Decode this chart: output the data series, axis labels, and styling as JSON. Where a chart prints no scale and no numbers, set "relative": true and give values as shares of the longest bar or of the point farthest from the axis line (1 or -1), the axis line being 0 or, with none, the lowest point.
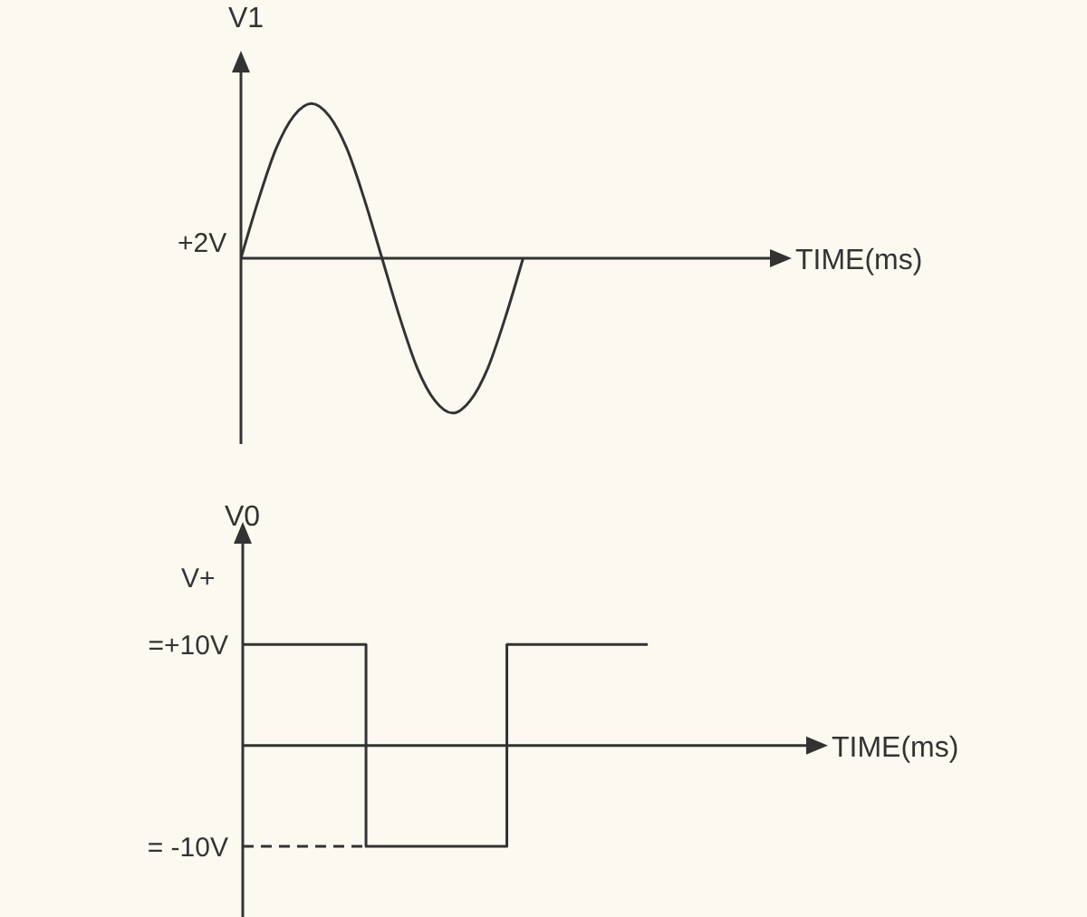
{
  "chart_data": [
    {
      "type": "line",
      "ylabel": "V1",
      "xlabel": "TIME(ms)",
      "relative": true,
      "categories": [
        null,
        null,
        null,
        null,
        null,
        null,
        null,
        null,
        null,
        null,
        null,
        null,
        null,
        null,
        null,
        null,
        null,
        null,
        null,
        null,
        null,
        null,
        null,
        null,
        null,
        null,
        null,
        null,
        null,
        null,
        null
      ],
      "series": [
        {
          "color": "#333333",
          "values": [
            0,
            0.38,
            0.71,
            0.92,
            1,
            0.92,
            0.71,
            0.38,
            0,
            -0.38,
            -0.71,
            -0.92,
            -1,
            -0.92,
            -0.71,
            -0.38,
            0,
            null,
            null,
            null,
            null,
            null,
            null,
            null,
            null,
            null,
            null,
            null,
            null,
            null,
            null
          ]
        }
      ],
      "ref_lines": [
        {
          "axis": "y",
          "value": 0,
          "color": "#333333"
        }
      ],
      "annotations": [
        "+2V"
      ]
    },
    {
      "type": "step",
      "ylabel": "V0",
      "xlabel": "TIME(ms)",
      "categories": [
        null,
        null,
        null,
        null,
        null,
        null,
        null,
        null,
        null,
        null,
        null,
        null,
        null,
        null,
        null,
        null,
        null,
        null,
        null,
        null,
        null,
        null,
        null,
        null,
        null,
        null,
        null,
        null,
        null,
        null,
        null,
        null,
        null
      ],
      "series": [
        {
          "color": "#333333",
          "values": [
            10,
            10,
            10,
            10,
            10,
            10,
            10,
            -10,
            -10,
            -10,
            -10,
            -10,
            -10,
            -10,
            -10,
            10,
            10,
            10,
            10,
            10,
            10,
            10,
            10,
            10,
            null,
            null,
            null,
            null,
            null,
            null,
            null,
            null,
            null
          ]
        }
      ],
      "ylim": [
        -17,
        20
      ],
      "yticks": [
        {
          "value": 10,
          "label": "=+10V"
        },
        {
          "value": -10,
          "label": "= -10V"
        }
      ],
      "ref_lines": [
        {
          "axis": "y",
          "value": 0,
          "color": "#333333"
        },
        {
          "axis": "y",
          "value": -10,
          "color": "#333333",
          "line_style": "dashed"
        }
      ],
      "annotations": [
        "V+"
      ]
    }
  ]
}
